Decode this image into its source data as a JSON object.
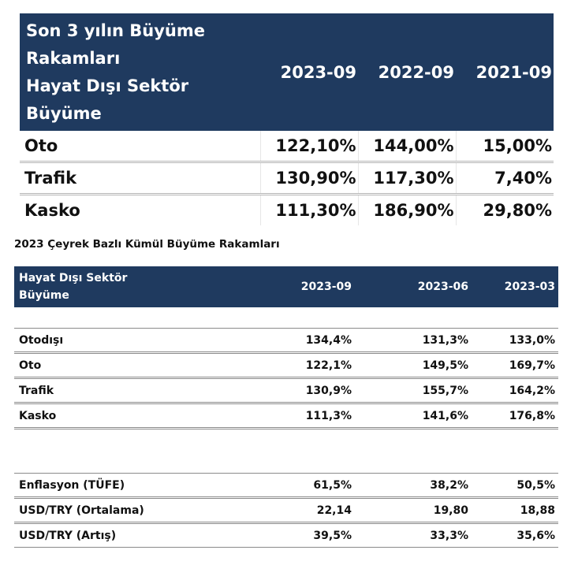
{
  "table1": {
    "header_label": "Son 3 yılın Büyüme\nRakamları\nHayat Dışı Sektör\nBüyüme",
    "columns": [
      "2023-09",
      "2022-09",
      "2021-09"
    ],
    "rows": [
      {
        "label": "Oto",
        "values": [
          "122,10%",
          "144,00%",
          "15,00%"
        ]
      },
      {
        "label": "Trafik",
        "values": [
          "130,90%",
          "117,30%",
          "7,40%"
        ]
      },
      {
        "label": "Kasko",
        "values": [
          "111,30%",
          "186,90%",
          "29,80%"
        ]
      }
    ]
  },
  "subtitle": "2023 Çeyrek Bazlı Kümül Büyüme Rakamları",
  "table2": {
    "header_label": "Hayat Dışı Sektör\nBüyüme",
    "columns": [
      "2023-09",
      "2023-06",
      "2023-03"
    ],
    "rows": [
      {
        "label": "Otodışı",
        "values": [
          "134,4%",
          "131,3%",
          "133,0%"
        ]
      },
      {
        "label": "Oto",
        "values": [
          "122,1%",
          "149,5%",
          "169,7%"
        ]
      },
      {
        "label": "Trafik",
        "values": [
          "130,9%",
          "155,7%",
          "164,2%"
        ]
      },
      {
        "label": "Kasko",
        "values": [
          "111,3%",
          "141,6%",
          "176,8%"
        ]
      },
      {
        "label": "Enflasyon (TÜFE)",
        "values": [
          "61,5%",
          "38,2%",
          "50,5%"
        ]
      },
      {
        "label": "USD/TRY (Ortalama)",
        "values": [
          "22,14",
          "19,80",
          "18,88"
        ]
      },
      {
        "label": "USD/TRY (Artış)",
        "values": [
          "39,5%",
          "33,3%",
          "35,6%"
        ]
      }
    ]
  }
}
